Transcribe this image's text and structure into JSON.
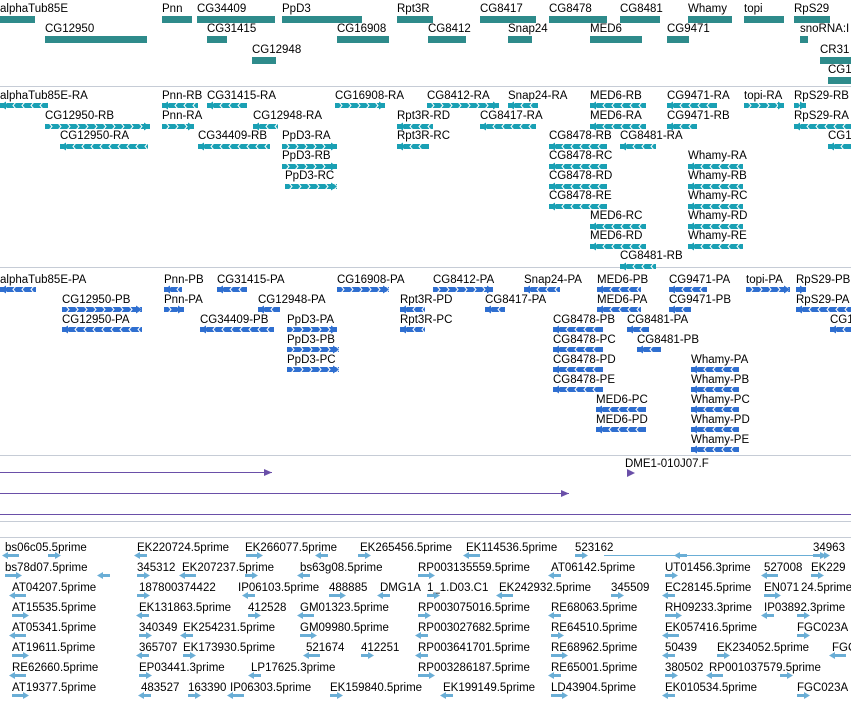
{
  "colors": {
    "gene": "#2e8b8b",
    "mrna": "#1aa0b4",
    "cds": "#2f6fd0",
    "cdna": "#6a4fa8",
    "est": "#6aaed6",
    "separator": "#c6ccd6"
  },
  "gene_labels": [
    "alphaTub85E",
    "Pnn",
    "CG34409",
    "PpD3",
    "Rpt3R",
    "CG8417",
    "CG8478",
    "CG8481",
    "Whamy",
    "topi",
    "RpS29",
    "CG12950",
    "CG31415",
    "CG16908",
    "CG8412",
    "Snap24",
    "MED6",
    "CG9471",
    "snoRNA:I",
    "CG12948",
    "CR31",
    "CG1"
  ],
  "mrna_labels": [
    "alphaTub85E-RA",
    "Pnn-RB",
    "CG31415-RA",
    "CG16908-RA",
    "CG8412-RA",
    "Snap24-RA",
    "MED6-RB",
    "CG9471-RA",
    "topi-RA",
    "RpS29-RB",
    "CG12950-RB",
    "Pnn-RA",
    "CG12948-RA",
    "Rpt3R-RD",
    "CG8417-RA",
    "MED6-RA",
    "CG9471-RB",
    "RpS29-RA",
    "CG12950-RA",
    "CG34409-RB",
    "PpD3-RA",
    "Rpt3R-RC",
    "CG8478-RB",
    "CG8481-RA",
    "CG1",
    "PpD3-RB",
    "CG8478-RC",
    "Whamy-RA",
    "PpD3-RC",
    "CG8478-RD",
    "Whamy-RB",
    "CG8478-RE",
    "Whamy-RC",
    "MED6-RC",
    "Whamy-RD",
    "MED6-RD",
    "Whamy-RE",
    "CG8481-RB"
  ],
  "cds_labels": [
    "alphaTub85E-PA",
    "Pnn-PB",
    "CG31415-PA",
    "CG16908-PA",
    "CG8412-PA",
    "Snap24-PA",
    "MED6-PB",
    "CG9471-PA",
    "topi-PA",
    "RpS29-PB",
    "CG12950-PB",
    "Pnn-PA",
    "CG12948-PA",
    "Rpt3R-PD",
    "CG8417-PA",
    "MED6-PA",
    "CG9471-PB",
    "RpS29-PA",
    "CG12950-PA",
    "CG34409-PB",
    "PpD3-PA",
    "Rpt3R-PC",
    "CG8478-PB",
    "CG8481-PA",
    "CG1",
    "PpD3-PB",
    "CG8478-PC",
    "CG8481-PB",
    "PpD3-PC",
    "CG8478-PD",
    "Whamy-PA",
    "CG8478-PE",
    "Whamy-PB",
    "MED6-PC",
    "Whamy-PC",
    "MED6-PD",
    "Whamy-PD",
    "Whamy-PE"
  ],
  "cdna_labels": [
    "DME1-010J07.F"
  ],
  "est_labels": [
    "bs06c05.5prime",
    "EK220724.5prime",
    "EK266077.5prime",
    "EK265456.5prime",
    "EK114536.5prime",
    "523162",
    "34963",
    "bs78d07.5prime",
    "345312",
    "EK207237.5prime",
    "bs63g08.5prime",
    "RP003135559.5prime",
    "AT06142.5prime",
    "UT01456.3prime",
    "527008",
    "EK229",
    "AT04207.5prime",
    "187800374422",
    "IP06103.5prime",
    "488885",
    "DMG1A",
    "1_1.D03.C1",
    "EK242932.5prime",
    "345509",
    "EC28145.5prime",
    "EN071",
    "24.5prime",
    "AT15535.5prime",
    "EK131863.5prime",
    "412528",
    "GM01323.5prime",
    "RP003075016.5prime",
    "RE68063.5prime",
    "RH09233.3prime",
    "IP03892.3prime",
    "AT05341.5prime",
    "340349",
    "EK254231.5prime",
    "GM09980.5prime",
    "RP003027682.5prime",
    "RE64510.5prime",
    "EK057416.5prime",
    "FGC023A",
    "AT19611.5prime",
    "365707",
    "EK173930.5prime",
    "521674",
    "412251",
    "RP003641701.5prime",
    "RE68962.5prime",
    "50439",
    "EK234052.5prime",
    "FGC",
    "RE62660.5prime",
    "EP03441.3prime",
    "LP17625.3prime",
    "RP003286187.5prime",
    "RE65001.5prime",
    "380502",
    "RP001037579.5prime",
    "AT19377.5prime",
    "483527",
    "163390",
    "IP06303.5prime",
    "EK159840.5prime",
    "EK199149.5prime",
    "LD43904.5prime",
    "EK010534.5prime",
    "FGC023A"
  ]
}
